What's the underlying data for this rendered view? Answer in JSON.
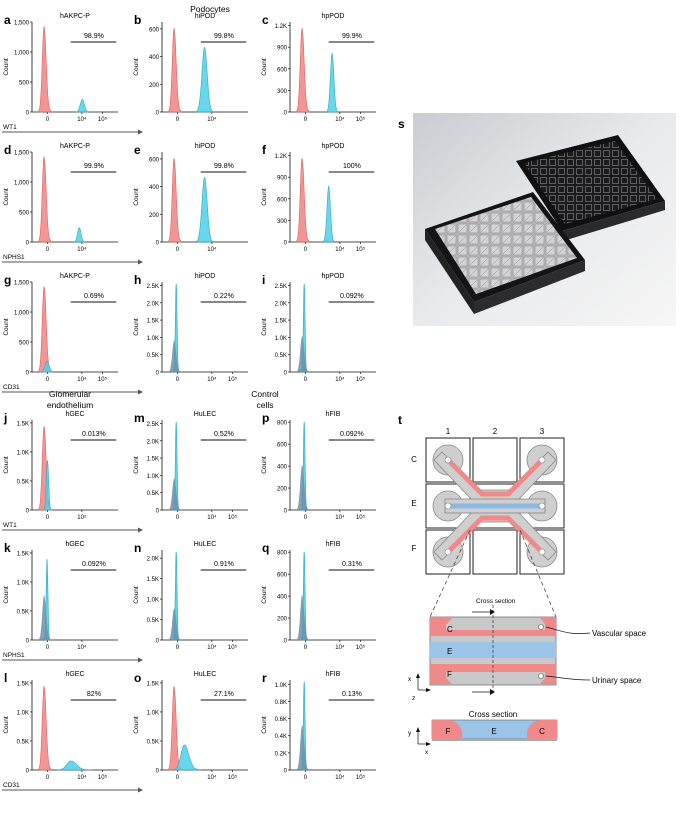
{
  "section_titles": {
    "podocytes": "Podocytes",
    "glom1": "Glomerular",
    "glom2": "endothelium",
    "control1": "Control",
    "control2": "cells"
  },
  "colors": {
    "control": "#f08a8a",
    "stained": "#4fd0e8",
    "overlap": "#6c8fa8"
  },
  "panels": [
    {
      "letter": "a",
      "title": "hAKPC-P",
      "pct": "98.9%",
      "marker": "WT1",
      "ylim": 1500,
      "yticks": [
        "0",
        "500",
        "1,000",
        "1,500"
      ],
      "xticks": [
        "0",
        "10⁴",
        "10⁵"
      ],
      "redH": 0.95,
      "blueH": 0.14,
      "blueX": 0.55,
      "blueW": 0.07
    },
    {
      "letter": "b",
      "title": "hiPOD",
      "pct": "99.8%",
      "marker": "",
      "ylim": 650,
      "yticks": [
        "0",
        "200",
        "400",
        "600"
      ],
      "xticks": [
        "0",
        "10⁴"
      ],
      "redH": 0.93,
      "blueH": 0.72,
      "blueX": 0.45,
      "blueW": 0.09
    },
    {
      "letter": "c",
      "title": "hpPOD",
      "pct": "99.9%",
      "marker": "",
      "ylim": 1250,
      "yticks": [
        "0",
        "300",
        "600",
        "900",
        "1.2K"
      ],
      "xticks": [
        "0",
        "10⁴",
        "10⁵"
      ],
      "redH": 0.93,
      "blueH": 0.65,
      "blueX": 0.46,
      "blueW": 0.06
    },
    {
      "letter": "d",
      "title": "hAKPC-P",
      "pct": "99.9%",
      "marker": "NPHS1",
      "ylim": 1500,
      "yticks": [
        "0",
        "500",
        "1,000",
        "1,500"
      ],
      "xticks": [
        "0",
        "10⁴"
      ],
      "redH": 0.95,
      "blueH": 0.16,
      "blueX": 0.52,
      "blueW": 0.06
    },
    {
      "letter": "e",
      "title": "hiPOD",
      "pct": "99.8%",
      "marker": "",
      "ylim": 650,
      "yticks": [
        "0",
        "200",
        "400",
        "600"
      ],
      "xticks": [
        "0",
        "10⁴"
      ],
      "redH": 0.93,
      "blueH": 0.72,
      "blueX": 0.45,
      "blueW": 0.09
    },
    {
      "letter": "f",
      "title": "hpPOD",
      "pct": "100%",
      "marker": "",
      "ylim": 1250,
      "yticks": [
        "0",
        "300",
        "600",
        "900",
        "1.2K"
      ],
      "xticks": [
        "0",
        "10⁴",
        "10⁵"
      ],
      "redH": 0.93,
      "blueH": 0.62,
      "blueX": 0.42,
      "blueW": 0.06
    },
    {
      "letter": "g",
      "title": "hAKPC-P",
      "pct": "0.69%",
      "marker": "CD31",
      "ylim": 1500,
      "yticks": [
        "0",
        "500",
        "1,000",
        "1,500"
      ],
      "xticks": [
        "0",
        "10⁴",
        "10⁵"
      ],
      "redH": 0.95,
      "blueH": 0.12,
      "blueX": 0.14,
      "blueW": 0.07
    },
    {
      "letter": "h",
      "title": "hiPOD",
      "pct": "0.22%",
      "marker": "",
      "ylim": 2600,
      "yticks": [
        "0",
        "0.5K",
        "1.0K",
        "1.5K",
        "2.0K",
        "2.5K"
      ],
      "xticks": [
        "0",
        "10⁴",
        "10⁵"
      ],
      "redH": 0.35,
      "blueH": 0.98,
      "blueX": 0.15,
      "blueW": 0.03
    },
    {
      "letter": "i",
      "title": "hpPOD",
      "pct": "0.092%",
      "marker": "",
      "ylim": 2600,
      "yticks": [
        "0",
        "0.5K",
        "1.0K",
        "1.5K",
        "2.0K",
        "2.5K"
      ],
      "xticks": [
        "0",
        "10⁴",
        "10⁵"
      ],
      "redH": 0.4,
      "blueH": 0.98,
      "blueX": 0.15,
      "blueW": 0.03
    },
    {
      "letter": "j",
      "title": "hGEC",
      "pct": "0.013%",
      "marker": "WT1",
      "ylim": 1550,
      "yticks": [
        "0",
        "0.5K",
        "1.0K",
        "1.5K"
      ],
      "xticks": [
        "0",
        "10⁵"
      ],
      "redH": 0.93,
      "blueH": 0.55,
      "blueX": 0.16,
      "blueW": 0.04
    },
    {
      "letter": "m",
      "title": "HuLEC",
      "pct": "0.52%",
      "marker": "",
      "ylim": 2600,
      "yticks": [
        "0",
        "0.5K",
        "1.0K",
        "1.5K",
        "2.0K",
        "2.5K"
      ],
      "xticks": [
        "0",
        "10⁴",
        "10⁵"
      ],
      "redH": 0.35,
      "blueH": 0.98,
      "blueX": 0.15,
      "blueW": 0.03
    },
    {
      "letter": "p",
      "title": "hFIB",
      "pct": "0.092%",
      "marker": "",
      "ylim": 820,
      "yticks": [
        "0",
        "200",
        "400",
        "600",
        "800"
      ],
      "xticks": [
        "0",
        "10⁴",
        "10⁵"
      ],
      "redH": 0.5,
      "blueH": 0.98,
      "blueX": 0.15,
      "blueW": 0.03
    },
    {
      "letter": "k",
      "title": "hGEC",
      "pct": "0.092%",
      "marker": "NPHS1",
      "ylim": 1550,
      "yticks": [
        "0",
        "0.5K",
        "1.0K",
        "1.5K"
      ],
      "xticks": [
        "0",
        "10⁴"
      ],
      "redH": 0.5,
      "blueH": 0.9,
      "blueX": 0.16,
      "blueW": 0.03
    },
    {
      "letter": "n",
      "title": "HuLEC",
      "pct": "0.91%",
      "marker": "",
      "ylim": 2200,
      "yticks": [
        "0",
        "0.5K",
        "1.0K",
        "1.5K",
        "2.0K"
      ],
      "xticks": [
        "0",
        "10⁴",
        "10⁵"
      ],
      "redH": 0.35,
      "blueH": 0.98,
      "blueX": 0.15,
      "blueW": 0.03
    },
    {
      "letter": "q",
      "title": "hFIB",
      "pct": "0.31%",
      "marker": "",
      "ylim": 820,
      "yticks": [
        "0",
        "200",
        "400",
        "600",
        "800"
      ],
      "xticks": [
        "0",
        "10⁴",
        "10⁵"
      ],
      "redH": 0.5,
      "blueH": 0.98,
      "blueX": 0.15,
      "blueW": 0.03
    },
    {
      "letter": "l",
      "title": "hGEC",
      "pct": "82%",
      "marker": "CD31",
      "ylim": 1550,
      "yticks": [
        "0",
        "0.5K",
        "1.0K",
        "1.5K"
      ],
      "xticks": [
        "0",
        "10⁴",
        "10⁵"
      ],
      "redH": 0.93,
      "blueH": 0.1,
      "blueX": 0.38,
      "blueW": 0.15
    },
    {
      "letter": "o",
      "title": "HuLEC",
      "pct": "27.1%",
      "marker": "",
      "ylim": 1550,
      "yticks": [
        "0",
        "0.5K",
        "1.0K",
        "1.5K"
      ],
      "xticks": [
        "0",
        "10⁴",
        "10⁵"
      ],
      "redH": 0.93,
      "blueH": 0.28,
      "blueX": 0.2,
      "blueW": 0.12
    },
    {
      "letter": "r",
      "title": "hFIB",
      "pct": "0.13%",
      "marker": "",
      "ylim": 1050,
      "yticks": [
        "0",
        "0.2K",
        "0.4K",
        "0.6K",
        "0.8K",
        "1.0K"
      ],
      "xticks": [
        "0",
        "10⁴",
        "10⁵"
      ],
      "redH": 0.5,
      "blueH": 0.98,
      "blueX": 0.15,
      "blueW": 0.03
    }
  ],
  "count_label": "Count",
  "panel_s": {
    "letter": "s"
  },
  "panel_t": {
    "letter": "t",
    "columns": [
      "1",
      "2",
      "3"
    ],
    "rows": [
      "C",
      "E",
      "F"
    ],
    "cross_section_label": "Cross section",
    "vascular_label": "Vascular space",
    "urinary_label": "Urinary space",
    "channel_labels": [
      "C",
      "E",
      "F"
    ],
    "axis_x": "x",
    "axis_y": "y",
    "axis_z": "z",
    "cross_title": "Cross section",
    "cross_labels": [
      "F",
      "E",
      "C"
    ]
  }
}
